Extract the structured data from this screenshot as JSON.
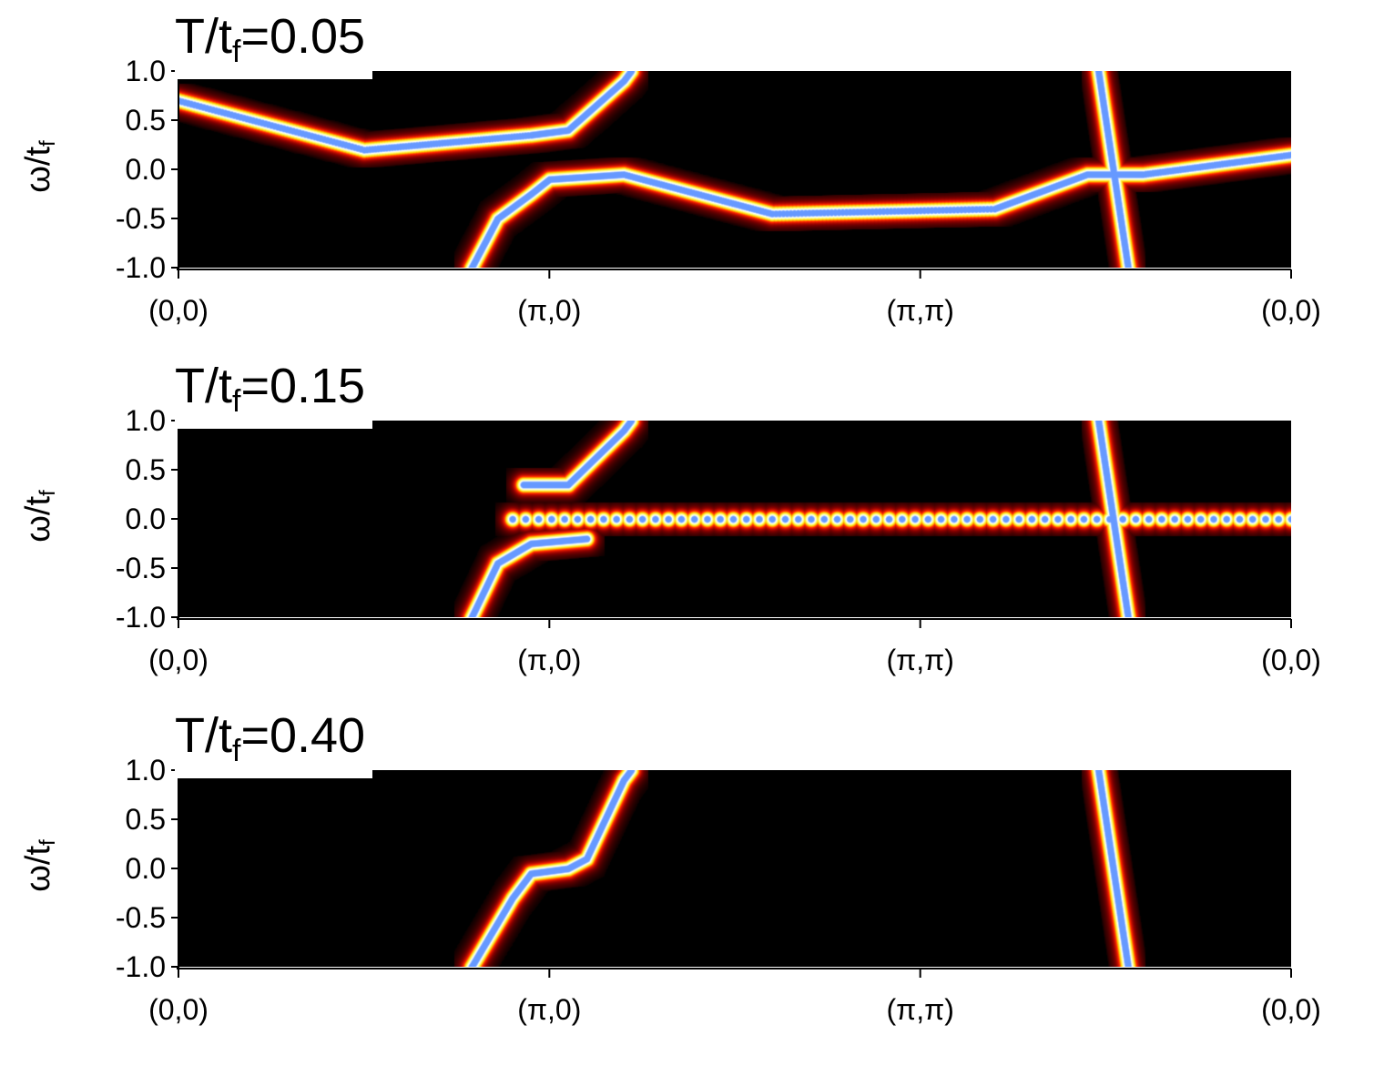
{
  "chart_data": [
    {
      "type": "heatmap",
      "title": "T/tf=0.05",
      "title_main": "T/t",
      "title_sub": "f",
      "title_value": "=0.05",
      "ylabel_main": "ω/t",
      "ylabel_sub": "f",
      "xlabel": "",
      "x_ticks": [
        "(0,0)",
        "(π,0)",
        "(π,π)",
        "(0,0)"
      ],
      "y_ticks": [
        "1.0",
        "0.5",
        "0.0",
        "-0.5",
        "-1.0"
      ],
      "ylim": [
        -1.0,
        1.0
      ],
      "colormap": [
        "#000000",
        "#8b0000",
        "#ff2000",
        "#ffd000",
        "#ffff80",
        "#ffffff",
        "#6699ff"
      ],
      "features": [
        {
          "name": "main band",
          "points": [
            [
              0.79,
              -1.0
            ],
            [
              0.86,
              -0.5
            ],
            [
              0.95,
              -0.25
            ],
            [
              1.0,
              -0.1
            ],
            [
              1.2,
              -0.05
            ],
            [
              1.6,
              -0.45
            ],
            [
              2.2,
              -0.4
            ],
            [
              2.45,
              -0.05
            ],
            [
              2.6,
              -0.05
            ],
            [
              3.0,
              0.15
            ]
          ]
        },
        {
          "name": "upper band",
          "points": [
            [
              0.0,
              0.7
            ],
            [
              0.5,
              0.2
            ],
            [
              0.95,
              0.35
            ],
            [
              1.05,
              0.4
            ],
            [
              1.2,
              0.9
            ],
            [
              1.22,
              1.0
            ]
          ]
        },
        {
          "name": "steep band",
          "points": [
            [
              2.48,
              1.0
            ],
            [
              2.52,
              0.0
            ],
            [
              2.56,
              -1.0
            ]
          ]
        }
      ]
    },
    {
      "type": "heatmap",
      "title": "T/tf=0.15",
      "title_main": "T/t",
      "title_sub": "f",
      "title_value": "=0.15",
      "ylabel_main": "ω/t",
      "ylabel_sub": "f",
      "xlabel": "",
      "x_ticks": [
        "(0,0)",
        "(π,0)",
        "(π,π)",
        "(0,0)"
      ],
      "y_ticks": [
        "1.0",
        "0.5",
        "0.0",
        "-0.5",
        "-1.0"
      ],
      "ylim": [
        -1.0,
        1.0
      ],
      "colormap": [
        "#000000",
        "#8b0000",
        "#ff2000",
        "#ffd000",
        "#ffff80",
        "#ffffff",
        "#6699ff"
      ],
      "features": [
        {
          "name": "lower band",
          "points": [
            [
              0.79,
              -1.0
            ],
            [
              0.86,
              -0.45
            ],
            [
              0.95,
              -0.25
            ],
            [
              1.1,
              -0.2
            ]
          ]
        },
        {
          "name": "upper band",
          "points": [
            [
              0.93,
              0.35
            ],
            [
              1.05,
              0.35
            ],
            [
              1.2,
              0.9
            ],
            [
              1.22,
              1.0
            ]
          ]
        },
        {
          "name": "flat line",
          "points": [
            [
              0.9,
              0.0
            ],
            [
              3.0,
              0.0
            ]
          ]
        },
        {
          "name": "steep band",
          "points": [
            [
              2.48,
              1.0
            ],
            [
              2.52,
              0.0
            ],
            [
              2.56,
              -1.0
            ]
          ]
        }
      ]
    },
    {
      "type": "heatmap",
      "title": "T/tf=0.40",
      "title_main": "T/t",
      "title_sub": "f",
      "title_value": "=0.40",
      "ylabel_main": "ω/t",
      "ylabel_sub": "f",
      "xlabel": "",
      "x_ticks": [
        "(0,0)",
        "(π,0)",
        "(π,π)",
        "(0,0)"
      ],
      "y_ticks": [
        "1.0",
        "0.5",
        "0.0",
        "-0.5",
        "-1.0"
      ],
      "ylim": [
        -1.0,
        1.0
      ],
      "colormap": [
        "#000000",
        "#8b0000",
        "#ff2000",
        "#ffd000",
        "#ffff80",
        "#ffffff",
        "#6699ff"
      ],
      "features": [
        {
          "name": "main band",
          "points": [
            [
              0.79,
              -1.0
            ],
            [
              0.9,
              -0.3
            ],
            [
              0.95,
              -0.05
            ],
            [
              1.05,
              0.0
            ],
            [
              1.1,
              0.1
            ],
            [
              1.2,
              0.9
            ],
            [
              1.22,
              1.0
            ]
          ]
        },
        {
          "name": "steep band",
          "points": [
            [
              2.48,
              1.0
            ],
            [
              2.52,
              0.0
            ],
            [
              2.56,
              -1.0
            ]
          ]
        }
      ]
    }
  ]
}
